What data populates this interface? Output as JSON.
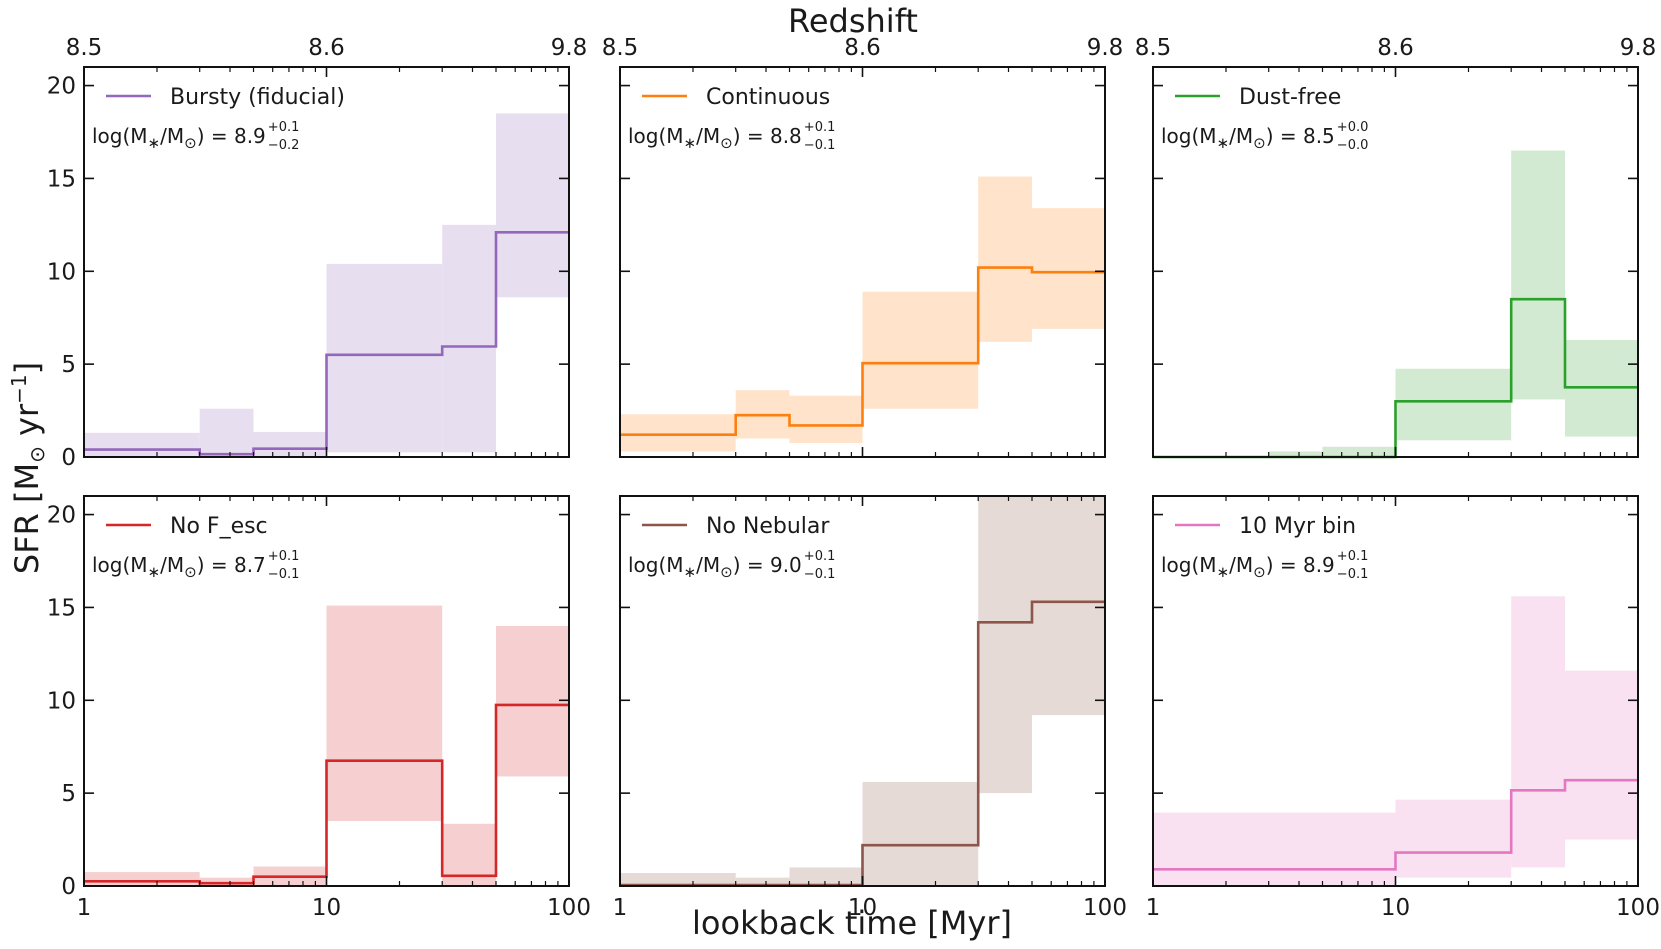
{
  "figure": {
    "top_axis_title": "Redshift",
    "x_axis_title": "lookback time [Myr]",
    "y_axis_title_main": "SFR [M",
    "y_axis_title_sun": "⊙",
    "y_axis_title_rest": " yr",
    "y_axis_title_exp": "−1",
    "y_axis_title_end": "]"
  },
  "chart_data": [
    {
      "type": "area",
      "title": "",
      "legend": "Bursty (fiducial)",
      "color": "#9467bd",
      "x_scale": "log",
      "xlim": [
        1,
        100
      ],
      "ylim": [
        0,
        21
      ],
      "x_tick_labels": [
        "1",
        "10",
        "100"
      ],
      "y_tick_labels": [
        "0",
        "5",
        "10",
        "15",
        "20"
      ],
      "top_tick_labels": [
        "8.5",
        "8.6",
        "9.8"
      ],
      "mass_label": {
        "prefix": "log(M",
        "sub1": "∗",
        "mid": "/M",
        "sub2": "⊙",
        "suffix": ") = 8.9",
        "plus": "+0.1",
        "minus": "−0.2"
      },
      "bins": [
        {
          "x0": 1,
          "x1": 3,
          "y": 0.4,
          "lo": 0.0,
          "hi": 1.3
        },
        {
          "x0": 3,
          "x1": 5,
          "y": 0.15,
          "lo": 0.0,
          "hi": 2.6
        },
        {
          "x0": 5,
          "x1": 10,
          "y": 0.45,
          "lo": 0.0,
          "hi": 1.35
        },
        {
          "x0": 10,
          "x1": 30,
          "y": 5.5,
          "lo": 0.25,
          "hi": 10.4
        },
        {
          "x0": 30,
          "x1": 50,
          "y": 5.95,
          "lo": 0.25,
          "hi": 12.5
        },
        {
          "x0": 50,
          "x1": 100,
          "y": 12.1,
          "lo": 8.6,
          "hi": 18.5
        }
      ]
    },
    {
      "type": "area",
      "title": "",
      "legend": "Continuous",
      "color": "#ff7f0e",
      "x_scale": "log",
      "xlim": [
        1,
        100
      ],
      "ylim": [
        0,
        21
      ],
      "x_tick_labels": [
        "1",
        "10",
        "100"
      ],
      "y_tick_labels": [
        "",
        "",
        "",
        "",
        ""
      ],
      "top_tick_labels": [
        "8.5",
        "8.6",
        "9.8"
      ],
      "mass_label": {
        "prefix": "log(M",
        "sub1": "∗",
        "mid": "/M",
        "sub2": "⊙",
        "suffix": ") = 8.8",
        "plus": "+0.1",
        "minus": "−0.1"
      },
      "bins": [
        {
          "x0": 1,
          "x1": 3,
          "y": 1.2,
          "lo": 0.3,
          "hi": 2.3
        },
        {
          "x0": 3,
          "x1": 5,
          "y": 2.25,
          "lo": 1.0,
          "hi": 3.6
        },
        {
          "x0": 5,
          "x1": 10,
          "y": 1.7,
          "lo": 0.75,
          "hi": 3.3
        },
        {
          "x0": 10,
          "x1": 30,
          "y": 5.05,
          "lo": 2.6,
          "hi": 8.9
        },
        {
          "x0": 30,
          "x1": 50,
          "y": 10.2,
          "lo": 6.2,
          "hi": 15.1
        },
        {
          "x0": 50,
          "x1": 100,
          "y": 9.95,
          "lo": 6.9,
          "hi": 13.4
        }
      ]
    },
    {
      "type": "area",
      "title": "",
      "legend": "Dust-free",
      "color": "#2ca02c",
      "x_scale": "log",
      "xlim": [
        1,
        100
      ],
      "ylim": [
        0,
        21
      ],
      "x_tick_labels": [
        "1",
        "10",
        "100"
      ],
      "y_tick_labels": [
        "",
        "",
        "",
        "",
        ""
      ],
      "top_tick_labels": [
        "8.5",
        "8.6",
        "9.8"
      ],
      "mass_label": {
        "prefix": "log(M",
        "sub1": "∗",
        "mid": "/M",
        "sub2": "⊙",
        "suffix": ") = 8.5",
        "plus": "+0.0",
        "minus": "−0.0"
      },
      "bins": [
        {
          "x0": 1,
          "x1": 3,
          "y": 0.0,
          "lo": 0.0,
          "hi": 0.05
        },
        {
          "x0": 3,
          "x1": 5,
          "y": 0.0,
          "lo": 0.0,
          "hi": 0.3
        },
        {
          "x0": 5,
          "x1": 10,
          "y": 0.0,
          "lo": 0.0,
          "hi": 0.55
        },
        {
          "x0": 10,
          "x1": 30,
          "y": 3.0,
          "lo": 0.9,
          "hi": 4.75
        },
        {
          "x0": 30,
          "x1": 50,
          "y": 8.5,
          "lo": 3.1,
          "hi": 16.5
        },
        {
          "x0": 50,
          "x1": 100,
          "y": 3.75,
          "lo": 1.1,
          "hi": 6.3
        }
      ]
    },
    {
      "type": "area",
      "title": "",
      "legend": "No F_esc",
      "color": "#d62728",
      "x_scale": "log",
      "xlim": [
        1,
        100
      ],
      "ylim": [
        0,
        21
      ],
      "x_tick_labels": [
        "1",
        "10",
        "100"
      ],
      "y_tick_labels": [
        "0",
        "5",
        "10",
        "15",
        "20"
      ],
      "top_tick_labels": [],
      "mass_label": {
        "prefix": "log(M",
        "sub1": "∗",
        "mid": "/M",
        "sub2": "⊙",
        "suffix": ") = 8.7",
        "plus": "+0.1",
        "minus": "−0.1"
      },
      "bins": [
        {
          "x0": 1,
          "x1": 3,
          "y": 0.25,
          "lo": 0.0,
          "hi": 0.75
        },
        {
          "x0": 3,
          "x1": 5,
          "y": 0.15,
          "lo": 0.0,
          "hi": 0.45
        },
        {
          "x0": 5,
          "x1": 10,
          "y": 0.5,
          "lo": 0.0,
          "hi": 1.05
        },
        {
          "x0": 10,
          "x1": 30,
          "y": 6.75,
          "lo": 3.5,
          "hi": 15.1
        },
        {
          "x0": 30,
          "x1": 50,
          "y": 0.55,
          "lo": 0.0,
          "hi": 3.35
        },
        {
          "x0": 50,
          "x1": 100,
          "y": 9.75,
          "lo": 5.9,
          "hi": 14.0
        }
      ]
    },
    {
      "type": "area",
      "title": "",
      "legend": "No Nebular",
      "color": "#8c564b",
      "x_scale": "log",
      "xlim": [
        1,
        100
      ],
      "ylim": [
        0,
        21
      ],
      "x_tick_labels": [
        "1",
        "10",
        "100"
      ],
      "y_tick_labels": [
        "",
        "",
        "",
        "",
        ""
      ],
      "top_tick_labels": [],
      "mass_label": {
        "prefix": "log(M",
        "sub1": "∗",
        "mid": "/M",
        "sub2": "⊙",
        "suffix": ") = 9.0",
        "plus": "+0.1",
        "minus": "−0.1"
      },
      "bins": [
        {
          "x0": 1,
          "x1": 3,
          "y": 0.05,
          "lo": 0.0,
          "hi": 0.7
        },
        {
          "x0": 3,
          "x1": 5,
          "y": 0.05,
          "lo": 0.0,
          "hi": 0.45
        },
        {
          "x0": 5,
          "x1": 10,
          "y": 0.05,
          "lo": 0.0,
          "hi": 1.0
        },
        {
          "x0": 10,
          "x1": 30,
          "y": 2.2,
          "lo": 0.0,
          "hi": 5.6
        },
        {
          "x0": 30,
          "x1": 50,
          "y": 14.2,
          "lo": 5.0,
          "hi": 21.0
        },
        {
          "x0": 50,
          "x1": 100,
          "y": 15.3,
          "lo": 9.2,
          "hi": 21.0
        }
      ]
    },
    {
      "type": "area",
      "title": "",
      "legend": "10 Myr bin",
      "color": "#e377c2",
      "x_scale": "log",
      "xlim": [
        1,
        100
      ],
      "ylim": [
        0,
        21
      ],
      "x_tick_labels": [
        "1",
        "10",
        "100"
      ],
      "y_tick_labels": [
        "",
        "",
        "",
        "",
        ""
      ],
      "top_tick_labels": [],
      "mass_label": {
        "prefix": "log(M",
        "sub1": "∗",
        "mid": "/M",
        "sub2": "⊙",
        "suffix": ") = 8.9",
        "plus": "+0.1",
        "minus": "−0.1"
      },
      "bins": [
        {
          "x0": 1,
          "x1": 10,
          "y": 0.9,
          "lo": 0.0,
          "hi": 3.95
        },
        {
          "x0": 10,
          "x1": 30,
          "y": 1.8,
          "lo": 0.45,
          "hi": 4.65
        },
        {
          "x0": 30,
          "x1": 50,
          "y": 5.15,
          "lo": 1.0,
          "hi": 15.6
        },
        {
          "x0": 50,
          "x1": 100,
          "y": 5.7,
          "lo": 2.5,
          "hi": 11.6
        }
      ]
    }
  ]
}
